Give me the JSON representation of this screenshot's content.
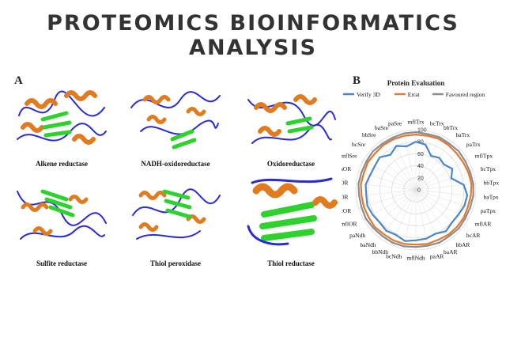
{
  "page": {
    "title": "PROTEOMICS BIOINFORMATICS ANALYSIS"
  },
  "panel_a": {
    "letter": "A",
    "proteins": [
      {
        "caption": "Alkene reductase"
      },
      {
        "caption": "NADH-oxidoreductase"
      },
      {
        "caption": "Oxidoreductase"
      },
      {
        "caption": "Sulfite reductase"
      },
      {
        "caption": "Thiol peroxidase"
      },
      {
        "caption": "Thiol reductase"
      }
    ],
    "colors": {
      "helix": "#e07b1f",
      "sheet": "#2ed12e",
      "coil": "#2b2bd6"
    }
  },
  "panel_b": {
    "letter": "B"
  },
  "chart_data": {
    "type": "radar",
    "title": "Protein Evaluation",
    "categories": [
      "mflTrx",
      "bcTrx",
      "bbTrx",
      "baTrx",
      "paTrx",
      "mflTpx",
      "bcTpx",
      "bbTpx",
      "baTpx",
      "paTpx",
      "mflAR",
      "bcAR",
      "bbAR",
      "baAR",
      "paAR",
      "mflNdh",
      "bcNdh",
      "bbNdh",
      "baNdh",
      "paNdh",
      "mflOR",
      "bcOR",
      "bbOR",
      "baOR",
      "paOR",
      "mflSre",
      "bcSre",
      "bbSre",
      "baSre",
      "paSre"
    ],
    "rlim": [
      0,
      100
    ],
    "ticks": [
      0,
      20,
      40,
      60,
      80,
      100
    ],
    "legend_position": "top",
    "series": [
      {
        "name": "Verify 3D",
        "color": "#4a86c8",
        "values": [
          80,
          77,
          62,
          66,
          63,
          70,
          62,
          80,
          86,
          85,
          82,
          81,
          85,
          80,
          83,
          84,
          87,
          82,
          84,
          81,
          83,
          85,
          83,
          84,
          80,
          79,
          81,
          72,
          80,
          74
        ]
      },
      {
        "name": "Errat",
        "color": "#e07a33",
        "values": [
          92,
          92,
          93,
          92,
          91,
          91,
          92,
          93,
          92,
          91,
          92,
          92,
          92,
          91,
          92,
          91,
          92,
          92,
          91,
          92,
          91,
          91,
          91,
          92,
          91,
          92,
          91,
          92,
          92,
          92
        ]
      },
      {
        "name": "Favoured region",
        "color": "#8c8c8c",
        "values": [
          96,
          95,
          96,
          95,
          96,
          95,
          95,
          96,
          96,
          95,
          95,
          96,
          95,
          96,
          95,
          95,
          96,
          96,
          95,
          95,
          96,
          95,
          95,
          96,
          95,
          95,
          96,
          95,
          95,
          96
        ]
      }
    ]
  }
}
